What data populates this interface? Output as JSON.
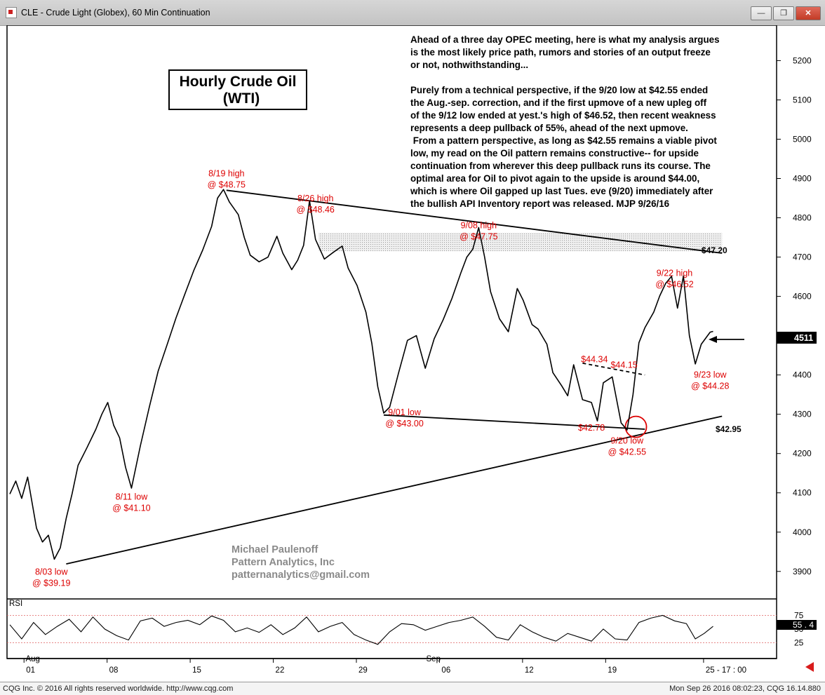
{
  "window": {
    "title": "CLE - Crude Light (Globex), 60 Min Continuation",
    "buttons": {
      "minimize": "—",
      "maximize": "❐",
      "close": "✕"
    }
  },
  "chart_data": {
    "type": "line",
    "title": "Hourly Crude Oil",
    "subtitle": "(WTI)",
    "ylim": [
      3830,
      5290
    ],
    "yticks": [
      3900,
      4000,
      4100,
      4200,
      4300,
      4400,
      4500,
      4600,
      4700,
      4800,
      4900,
      5000,
      5100,
      5200
    ],
    "x_labels": [
      "01",
      "08",
      "15",
      "22",
      "29",
      "06",
      "12",
      "19",
      "25 - 17 : 00"
    ],
    "month_labels": [
      "Aug",
      "Sep"
    ],
    "last_price": "4511",
    "grid": false,
    "series": [
      {
        "values": [
          [
            0,
            4097
          ],
          [
            2,
            4130
          ],
          [
            4,
            4086
          ],
          [
            6,
            4140
          ],
          [
            9,
            4010
          ],
          [
            11,
            3975
          ],
          [
            13,
            3992
          ],
          [
            15,
            3931
          ],
          [
            17,
            3960
          ],
          [
            19,
            4035
          ],
          [
            21,
            4098
          ],
          [
            23,
            4170
          ],
          [
            26,
            4215
          ],
          [
            29,
            4262
          ],
          [
            31,
            4300
          ],
          [
            33,
            4330
          ],
          [
            35,
            4272
          ],
          [
            37,
            4240
          ],
          [
            39,
            4165
          ],
          [
            41,
            4112
          ],
          [
            44,
            4220
          ],
          [
            47,
            4318
          ],
          [
            50,
            4410
          ],
          [
            53,
            4477
          ],
          [
            56,
            4545
          ],
          [
            59,
            4606
          ],
          [
            62,
            4666
          ],
          [
            65,
            4718
          ],
          [
            68,
            4778
          ],
          [
            70,
            4850
          ],
          [
            72,
            4872
          ],
          [
            74,
            4840
          ],
          [
            77,
            4808
          ],
          [
            79,
            4750
          ],
          [
            81,
            4705
          ],
          [
            84,
            4688
          ],
          [
            87,
            4700
          ],
          [
            90,
            4753
          ],
          [
            92,
            4710
          ],
          [
            95,
            4668
          ],
          [
            97,
            4692
          ],
          [
            99,
            4730
          ],
          [
            101,
            4843
          ],
          [
            103,
            4745
          ],
          [
            106,
            4695
          ],
          [
            109,
            4712
          ],
          [
            112,
            4728
          ],
          [
            114,
            4672
          ],
          [
            117,
            4628
          ],
          [
            120,
            4560
          ],
          [
            122,
            4480
          ],
          [
            124,
            4370
          ],
          [
            126,
            4303
          ],
          [
            128,
            4318
          ],
          [
            131,
            4405
          ],
          [
            134,
            4488
          ],
          [
            137,
            4500
          ],
          [
            140,
            4417
          ],
          [
            143,
            4492
          ],
          [
            146,
            4540
          ],
          [
            149,
            4595
          ],
          [
            152,
            4660
          ],
          [
            154,
            4700
          ],
          [
            156,
            4720
          ],
          [
            158,
            4775
          ],
          [
            160,
            4700
          ],
          [
            162,
            4612
          ],
          [
            165,
            4543
          ],
          [
            168,
            4510
          ],
          [
            171,
            4620
          ],
          [
            173,
            4590
          ],
          [
            176,
            4528
          ],
          [
            178,
            4517
          ],
          [
            181,
            4478
          ],
          [
            183,
            4406
          ],
          [
            186,
            4372
          ],
          [
            188,
            4347
          ],
          [
            190,
            4426
          ],
          [
            193,
            4337
          ],
          [
            196,
            4330
          ],
          [
            198,
            4283
          ],
          [
            200,
            4380
          ],
          [
            203,
            4395
          ],
          [
            206,
            4278
          ],
          [
            208,
            4260
          ],
          [
            210,
            4350
          ],
          [
            212,
            4482
          ],
          [
            214,
            4520
          ],
          [
            217,
            4560
          ],
          [
            219,
            4601
          ],
          [
            221,
            4633
          ],
          [
            223,
            4651
          ],
          [
            225,
            4570
          ],
          [
            227,
            4652
          ],
          [
            229,
            4500
          ],
          [
            231,
            4428
          ],
          [
            233,
            4478
          ],
          [
            236,
            4509
          ],
          [
            237,
            4511
          ]
        ]
      }
    ],
    "rsi": {
      "label": "RSI",
      "ylim": [
        0,
        100
      ],
      "yticks": [
        25,
        50,
        75
      ],
      "last": "55 . 4",
      "values": [
        [
          0,
          58
        ],
        [
          4,
          32
        ],
        [
          8,
          62
        ],
        [
          12,
          40
        ],
        [
          16,
          55
        ],
        [
          20,
          68
        ],
        [
          24,
          45
        ],
        [
          28,
          72
        ],
        [
          32,
          50
        ],
        [
          36,
          38
        ],
        [
          40,
          30
        ],
        [
          44,
          65
        ],
        [
          48,
          70
        ],
        [
          52,
          55
        ],
        [
          56,
          62
        ],
        [
          60,
          66
        ],
        [
          64,
          58
        ],
        [
          68,
          74
        ],
        [
          72,
          66
        ],
        [
          76,
          45
        ],
        [
          80,
          52
        ],
        [
          84,
          44
        ],
        [
          88,
          58
        ],
        [
          92,
          40
        ],
        [
          96,
          52
        ],
        [
          100,
          72
        ],
        [
          104,
          45
        ],
        [
          108,
          55
        ],
        [
          112,
          62
        ],
        [
          116,
          40
        ],
        [
          120,
          30
        ],
        [
          124,
          22
        ],
        [
          128,
          45
        ],
        [
          132,
          60
        ],
        [
          136,
          58
        ],
        [
          140,
          48
        ],
        [
          144,
          55
        ],
        [
          148,
          62
        ],
        [
          152,
          66
        ],
        [
          156,
          72
        ],
        [
          160,
          55
        ],
        [
          164,
          35
        ],
        [
          168,
          30
        ],
        [
          172,
          58
        ],
        [
          176,
          45
        ],
        [
          180,
          35
        ],
        [
          184,
          28
        ],
        [
          188,
          42
        ],
        [
          192,
          35
        ],
        [
          196,
          28
        ],
        [
          200,
          50
        ],
        [
          204,
          32
        ],
        [
          208,
          30
        ],
        [
          212,
          62
        ],
        [
          216,
          70
        ],
        [
          220,
          75
        ],
        [
          224,
          65
        ],
        [
          228,
          60
        ],
        [
          231,
          32
        ],
        [
          234,
          42
        ],
        [
          237,
          55
        ]
      ]
    },
    "lines": [
      {
        "name": "support",
        "from": [
          19,
          3919
        ],
        "to": [
          240,
          4295
        ],
        "label": ""
      },
      {
        "name": "resistance",
        "from": [
          73,
          4870
        ],
        "to": [
          240,
          4710
        ],
        "label": ""
      },
      {
        "name": "lower-wedge",
        "from": [
          126,
          4298
        ],
        "to": [
          214,
          4262
        ],
        "label": ""
      },
      {
        "name": "dashed-upper",
        "from": [
          193,
          4430
        ],
        "to": [
          214,
          4400
        ],
        "label": ""
      }
    ],
    "level_labels": [
      "$47.20",
      "$42.95"
    ],
    "annotations": [
      {
        "text": [
          "8/19 high",
          "@ $48.75"
        ],
        "x": 73,
        "y": 4905
      },
      {
        "text": [
          "8/26 high",
          "@ $48.46"
        ],
        "x": 103,
        "y": 4842
      },
      {
        "text": [
          "9/08 high",
          "@ $47.75"
        ],
        "x": 158,
        "y": 4773
      },
      {
        "text": [
          "9/22 high",
          "@ $46.52"
        ],
        "x": 224,
        "y": 4652
      },
      {
        "text": [
          "$44.34"
        ],
        "x": 197,
        "y": 4432
      },
      {
        "text": [
          "$44.15"
        ],
        "x": 207,
        "y": 4418
      },
      {
        "text": [
          "9/23 low",
          "@ $44.28"
        ],
        "x": 236,
        "y": 4393
      },
      {
        "text": [
          "9/01 low",
          "@ $43.00"
        ],
        "x": 133,
        "y": 4298
      },
      {
        "text": [
          "$42.78"
        ],
        "x": 196,
        "y": 4258
      },
      {
        "text": [
          "9/20 low",
          "@ $42.55"
        ],
        "x": 208,
        "y": 4225
      },
      {
        "text": [
          "8/11 low",
          "@ $41.10"
        ],
        "x": 41,
        "y": 4083
      },
      {
        "text": [
          "8/03 low",
          "@ $39.19"
        ],
        "x": 14,
        "y": 3892
      }
    ],
    "commentary": [
      "     Ahead of a three day OPEC meeting, here is what my analysis argues",
      "is the most likely price path, rumors and stories of an output freeze",
      "or not, nothwithstanding...",
      "",
      "     Purely from a technical perspective, if the 9/20 low at $42.55 ended",
      "the Aug.-sep. correction, and if the first upmove of a new upleg off",
      "of the 9/12 low ended at yest.'s high of $46.52, then recent weakness",
      "represents a deep pullback of 55%, ahead of the next upmove.",
      "     From a pattern perspective, as long as $42.55 remains a viable pivot",
      "low, my read on the Oil pattern remains constructive-- for upside",
      "continuation from wherever this deep pullback runs its course. The",
      "optimal area for Oil to pivot again to the upside is around $44.00,",
      "which is where Oil gapped up last Tues. eve (9/20) immediately after",
      "the bullish API Inventory report was released. MJP 9/26/16"
    ],
    "signature": [
      "Michael Paulenoff",
      "Pattern Analytics, Inc",
      "patternanalytics@gmail.com"
    ]
  },
  "footer": {
    "left": "CQG Inc. © 2016 All rights reserved worldwide. http://www.cqg.com",
    "right": "Mon Sep 26 2016 08:02:23, CQG 16.14.880"
  },
  "colors": {
    "price": "#000000",
    "annotation": "#dd0000",
    "rsi_ref": "#e06060",
    "band": "#c8c8c8"
  }
}
